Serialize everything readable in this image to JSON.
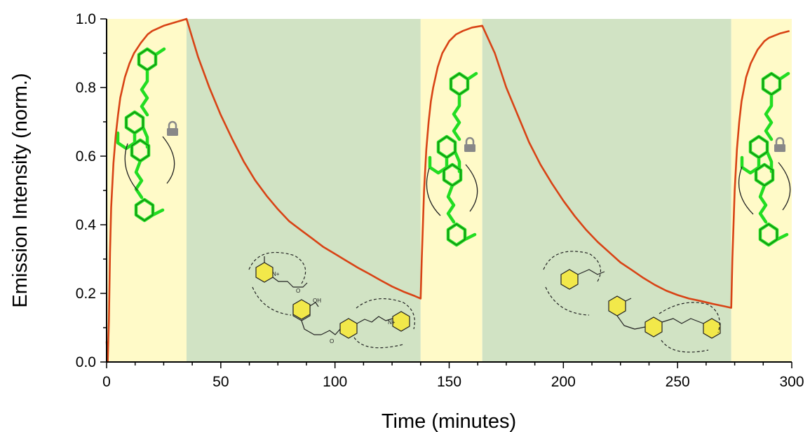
{
  "chart_data": {
    "type": "line",
    "xlabel": "Time (minutes)",
    "ylabel": "Emission Intensity (norm.)",
    "xlim": [
      0,
      300
    ],
    "ylim": [
      0,
      1.0
    ],
    "x_ticks": [
      0,
      50,
      100,
      150,
      200,
      250,
      300
    ],
    "y_ticks": [
      0.0,
      0.2,
      0.4,
      0.6,
      0.8,
      1.0
    ],
    "x_tick_labels": [
      "0",
      "50",
      "100",
      "150",
      "200",
      "250",
      "300"
    ],
    "y_tick_labels": [
      "0.0",
      "0.2",
      "0.4",
      "0.6",
      "0.8",
      "1.0"
    ],
    "grid": false,
    "legend": false,
    "shaded_regions": [
      {
        "x_start": 0,
        "x_end": 35,
        "color": "#fffac8"
      },
      {
        "x_start": 35,
        "x_end": 137.5,
        "color": "#d1e3c4"
      },
      {
        "x_start": 137.5,
        "x_end": 164.5,
        "color": "#fffac8"
      },
      {
        "x_start": 164.5,
        "x_end": 273.5,
        "color": "#d1e3c4"
      },
      {
        "x_start": 273.5,
        "x_end": 300,
        "color": "#fffac8"
      }
    ],
    "series": [
      {
        "color": "#d84315",
        "x": [
          0,
          0.5,
          1,
          1.5,
          2,
          3,
          4,
          5,
          6,
          8,
          10,
          12,
          15,
          18,
          20,
          25,
          30,
          35,
          40,
          45,
          50,
          55,
          60,
          65,
          70,
          75,
          80,
          85,
          90,
          95,
          100,
          105,
          110,
          115,
          120,
          125,
          130,
          135,
          137.5,
          138,
          139,
          140,
          141,
          142,
          143,
          145,
          147,
          150,
          153,
          156,
          160,
          164.5,
          170,
          175,
          180,
          185,
          190,
          195,
          200,
          205,
          210,
          215,
          220,
          225,
          230,
          235,
          240,
          245,
          250,
          255,
          260,
          265,
          270,
          273.5,
          274,
          275,
          276,
          277,
          278,
          280,
          282,
          285,
          288,
          290,
          295,
          299
        ],
        "y": [
          0.06,
          0.0,
          0.12,
          0.32,
          0.45,
          0.58,
          0.66,
          0.72,
          0.77,
          0.83,
          0.87,
          0.9,
          0.93,
          0.955,
          0.965,
          0.98,
          0.99,
          1.0,
          0.89,
          0.8,
          0.72,
          0.65,
          0.585,
          0.53,
          0.485,
          0.445,
          0.41,
          0.385,
          0.36,
          0.335,
          0.315,
          0.295,
          0.275,
          0.257,
          0.238,
          0.22,
          0.205,
          0.192,
          0.185,
          0.3,
          0.5,
          0.62,
          0.7,
          0.76,
          0.8,
          0.86,
          0.9,
          0.935,
          0.955,
          0.965,
          0.975,
          0.98,
          0.9,
          0.8,
          0.72,
          0.64,
          0.575,
          0.52,
          0.47,
          0.425,
          0.385,
          0.35,
          0.32,
          0.29,
          0.268,
          0.245,
          0.225,
          0.208,
          0.195,
          0.185,
          0.178,
          0.17,
          0.163,
          0.158,
          0.3,
          0.5,
          0.62,
          0.7,
          0.76,
          0.83,
          0.87,
          0.91,
          0.935,
          0.945,
          0.958,
          0.965
        ]
      }
    ],
    "annotations": [
      "OH",
      "O",
      "O",
      "N+",
      "N+"
    ]
  }
}
